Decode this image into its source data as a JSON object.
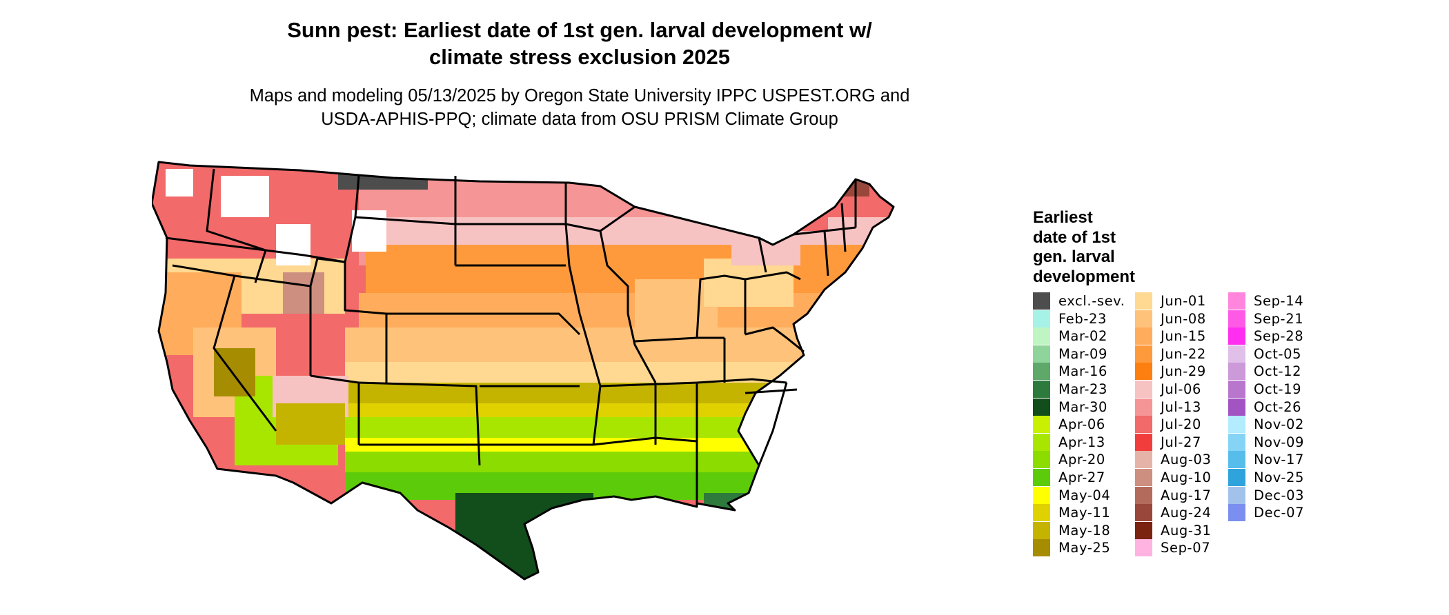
{
  "title_line1": "Sunn pest: Earliest date of 1st gen. larval development w/",
  "title_line2": "climate stress exclusion 2025",
  "subtitle_line1": "Maps and modeling 05/13/2025 by Oregon State University IPPC USPEST.ORG and",
  "subtitle_line2": "USDA-APHIS-PPQ; climate data from OSU PRISM Climate Group",
  "legend": {
    "title_lines": [
      "Earliest",
      "date of 1st",
      "gen. larval",
      "development"
    ],
    "columns": [
      [
        {
          "label": "excl.-sev.",
          "color": "#4d4d4d"
        },
        {
          "label": "Feb-23",
          "color": "#a6f2e6"
        },
        {
          "label": "Mar-02",
          "color": "#bff5c2"
        },
        {
          "label": "Mar-09",
          "color": "#8fd49a"
        },
        {
          "label": "Mar-16",
          "color": "#5ea86a"
        },
        {
          "label": "Mar-23",
          "color": "#2e7a3c"
        },
        {
          "label": "Mar-30",
          "color": "#124d1c"
        },
        {
          "label": "Apr-06",
          "color": "#c8f000"
        },
        {
          "label": "Apr-13",
          "color": "#a8e600"
        },
        {
          "label": "Apr-20",
          "color": "#8cdc00"
        },
        {
          "label": "Apr-27",
          "color": "#5ccc0a"
        },
        {
          "label": "May-04",
          "color": "#ffff00"
        },
        {
          "label": "May-11",
          "color": "#e0d200"
        },
        {
          "label": "May-18",
          "color": "#c4b400"
        },
        {
          "label": "May-25",
          "color": "#a68c00"
        }
      ],
      [
        {
          "label": "Jun-01",
          "color": "#ffd991"
        },
        {
          "label": "Jun-08",
          "color": "#ffc27a"
        },
        {
          "label": "Jun-15",
          "color": "#ffad5c"
        },
        {
          "label": "Jun-22",
          "color": "#ff9a3c"
        },
        {
          "label": "Jun-29",
          "color": "#fc7f10"
        },
        {
          "label": "Jul-06",
          "color": "#f7c2c2"
        },
        {
          "label": "Jul-13",
          "color": "#f59595"
        },
        {
          "label": "Jul-20",
          "color": "#f26a6a"
        },
        {
          "label": "Jul-27",
          "color": "#f23d3d"
        },
        {
          "label": "Aug-03",
          "color": "#e6b3a8"
        },
        {
          "label": "Aug-10",
          "color": "#cc8f80"
        },
        {
          "label": "Aug-17",
          "color": "#b36b5c"
        },
        {
          "label": "Aug-24",
          "color": "#99473a"
        },
        {
          "label": "Aug-31",
          "color": "#7a2310"
        },
        {
          "label": "Sep-07",
          "color": "#ffb3e0"
        }
      ],
      [
        {
          "label": "Sep-14",
          "color": "#ff85dd"
        },
        {
          "label": "Sep-21",
          "color": "#ff5ae6"
        },
        {
          "label": "Sep-28",
          "color": "#ff2ef0"
        },
        {
          "label": "Oct-05",
          "color": "#e0bfe8"
        },
        {
          "label": "Oct-12",
          "color": "#cc99d9"
        },
        {
          "label": "Oct-19",
          "color": "#b877cc"
        },
        {
          "label": "Oct-26",
          "color": "#a154c2"
        },
        {
          "label": "Nov-02",
          "color": "#b3ebff"
        },
        {
          "label": "Nov-09",
          "color": "#85d4f5"
        },
        {
          "label": "Nov-17",
          "color": "#57bdeb"
        },
        {
          "label": "Nov-25",
          "color": "#2ea3dc"
        },
        {
          "label": "Dec-03",
          "color": "#a3c2eb"
        },
        {
          "label": "Dec-07",
          "color": "#7a8ff0"
        }
      ]
    ]
  }
}
